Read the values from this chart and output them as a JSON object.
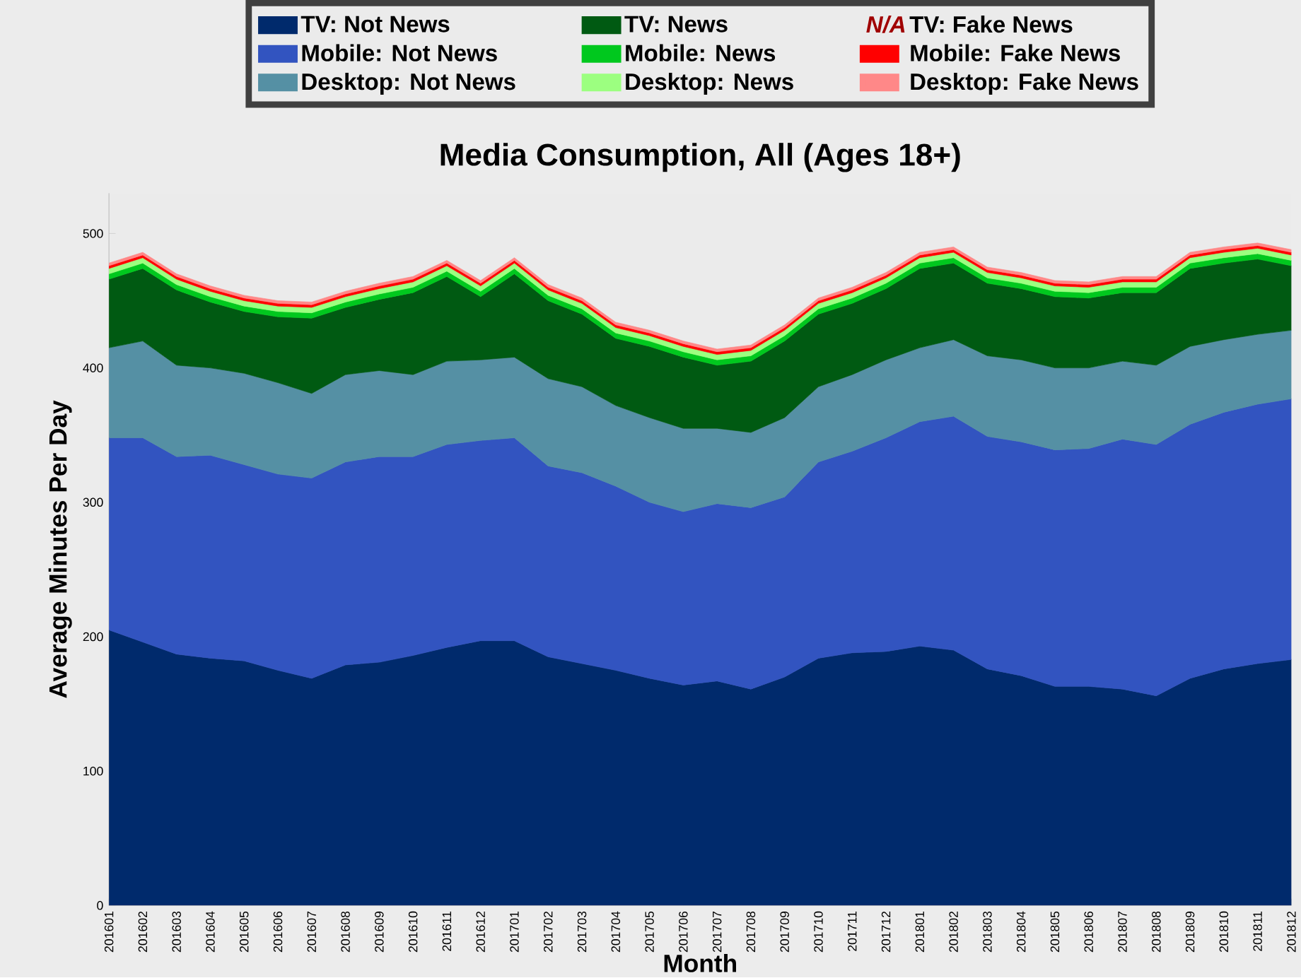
{
  "chart_data": {
    "type": "area",
    "stacked": true,
    "title": "Media Consumption,  All (Ages 18+)",
    "xlabel": "Month",
    "ylabel": "Average Minutes Per Day",
    "categories": [
      "201601",
      "201602",
      "201603",
      "201604",
      "201605",
      "201606",
      "201607",
      "201608",
      "201609",
      "201610",
      "201611",
      "201612",
      "201701",
      "201702",
      "201703",
      "201704",
      "201705",
      "201706",
      "201707",
      "201708",
      "201709",
      "201710",
      "201711",
      "201712",
      "201801",
      "201802",
      "201803",
      "201804",
      "201805",
      "201806",
      "201807",
      "201808",
      "201809",
      "201810",
      "201811",
      "201812"
    ],
    "ylim": [
      0,
      530
    ],
    "yticks": [
      0,
      100,
      200,
      300,
      400,
      500
    ],
    "grid": false,
    "legend": "top",
    "annotations": [
      "N/A"
    ],
    "series": [
      {
        "name": "TV: Not News",
        "color": "#002a6c",
        "values": [
          205,
          196,
          187,
          184,
          182,
          175,
          169,
          179,
          181,
          186,
          192,
          197,
          197,
          185,
          180,
          175,
          169,
          164,
          167,
          161,
          170,
          184,
          188,
          189,
          193,
          190,
          176,
          171,
          163,
          163,
          161,
          156,
          169,
          176,
          180,
          183
        ]
      },
      {
        "name": "Mobile: Not News",
        "color": "#3254c0",
        "values": [
          143,
          152,
          147,
          151,
          146,
          146,
          149,
          151,
          153,
          148,
          151,
          149,
          151,
          142,
          142,
          137,
          131,
          129,
          132,
          135,
          134,
          146,
          150,
          159,
          167,
          174,
          173,
          174,
          176,
          177,
          186,
          187,
          189,
          191,
          193,
          194
        ]
      },
      {
        "name": "Desktop: Not News",
        "color": "#5590a4",
        "values": [
          67,
          72,
          68,
          65,
          68,
          68,
          63,
          65,
          64,
          61,
          62,
          60,
          60,
          65,
          64,
          60,
          63,
          62,
          56,
          56,
          59,
          56,
          57,
          58,
          55,
          57,
          60,
          61,
          61,
          60,
          58,
          59,
          58,
          54,
          52,
          51
        ]
      },
      {
        "name": "TV: News",
        "color": "#005a12",
        "values": [
          51,
          54,
          56,
          49,
          46,
          49,
          56,
          50,
          53,
          61,
          63,
          47,
          62,
          58,
          54,
          50,
          53,
          53,
          47,
          53,
          57,
          54,
          53,
          53,
          59,
          57,
          54,
          53,
          53,
          52,
          51,
          54,
          58,
          57,
          56,
          48
        ]
      },
      {
        "name": "Mobile: News",
        "color": "#00c81e",
        "values": [
          4,
          4,
          4,
          4,
          4,
          4,
          4,
          4,
          4,
          4,
          4,
          4,
          4,
          4,
          4,
          4,
          4,
          4,
          4,
          4,
          4,
          4,
          4,
          4,
          4,
          4,
          4,
          4,
          4,
          4,
          4,
          4,
          4,
          4,
          4,
          4
        ]
      },
      {
        "name": "Desktop: News",
        "color": "#9cff80",
        "values": [
          4,
          4,
          4,
          4,
          4,
          4,
          4,
          4,
          4,
          4,
          4,
          4,
          4,
          4,
          4,
          4,
          4,
          4,
          4,
          4,
          4,
          4,
          4,
          4,
          4,
          4,
          4,
          4,
          4,
          4,
          4,
          4,
          4,
          4,
          4,
          4
        ]
      },
      {
        "name": "TV: Fake News",
        "values": [
          null,
          null,
          null,
          null,
          null,
          null,
          null,
          null,
          null,
          null,
          null,
          null,
          null,
          null,
          null,
          null,
          null,
          null,
          null,
          null,
          null,
          null,
          null,
          null,
          null,
          null,
          null,
          null,
          null,
          null,
          null,
          null,
          null,
          null,
          null,
          null
        ]
      },
      {
        "name": "Mobile: Fake News",
        "color": "#ff0000",
        "values": [
          2,
          2,
          2,
          2,
          2,
          2,
          2,
          2,
          2,
          2,
          2,
          2,
          2,
          2,
          2,
          2,
          2,
          2,
          2,
          2,
          2,
          2,
          2,
          2,
          2,
          2,
          2,
          2,
          2,
          2,
          2,
          2,
          2,
          2,
          2,
          2
        ]
      },
      {
        "name": "Desktop: Fake News",
        "color": "#ff8888",
        "values": [
          2,
          2,
          2,
          2,
          2,
          2,
          2,
          2,
          2,
          2,
          2,
          2,
          2,
          2,
          2,
          2,
          2,
          2,
          2,
          2,
          2,
          2,
          2,
          2,
          2,
          2,
          2,
          2,
          2,
          2,
          2,
          2,
          2,
          2,
          2,
          2
        ]
      }
    ]
  }
}
